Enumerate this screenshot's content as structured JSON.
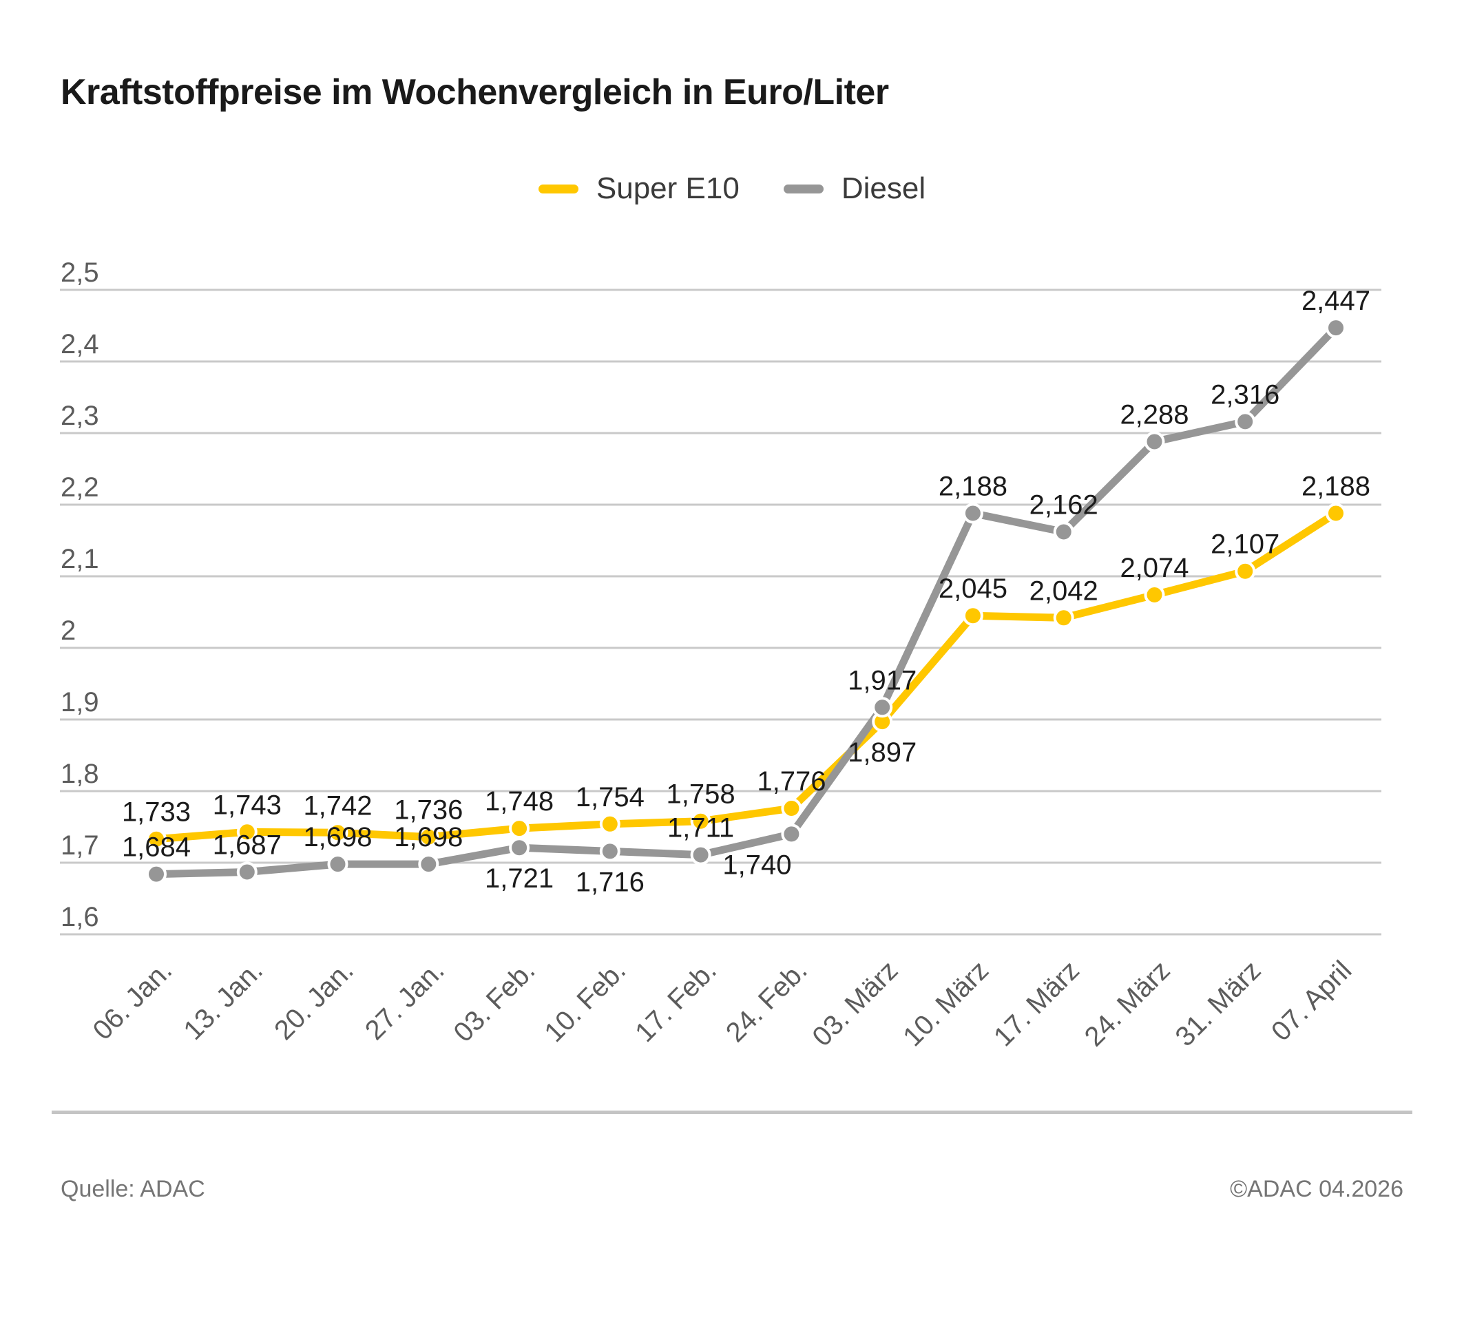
{
  "title": "Kraftstoffpreise im Wochenvergleich in Euro/Liter",
  "legend": {
    "items": [
      {
        "label": "Super E10",
        "color": "#FFC700"
      },
      {
        "label": "Diesel",
        "color": "#969696"
      }
    ]
  },
  "footer": {
    "source": "Quelle: ADAC",
    "copyright": "©ADAC 04.2026"
  },
  "colors": {
    "grid": "#C9C9C9",
    "axis_text": "#5C5C5C",
    "data_label": "#1A1A1A",
    "super_e10": "#FFC700",
    "diesel": "#969696"
  },
  "chart_data": {
    "type": "line",
    "title": "Kraftstoffpreise im Wochenvergleich in Euro/Liter",
    "unit": "Euro/Liter",
    "categories": [
      "06. Jan.",
      "13. Jan.",
      "20. Jan.",
      "27. Jan.",
      "03. Feb.",
      "10. Feb.",
      "17. Feb.",
      "24. Feb.",
      "03. März",
      "10. März",
      "17. März",
      "24. März",
      "31. März",
      "07. April"
    ],
    "series": [
      {
        "name": "Super E10",
        "color": "#FFC700",
        "values": [
          1.733,
          1.743,
          1.742,
          1.736,
          1.748,
          1.754,
          1.758,
          1.776,
          1.897,
          2.045,
          2.042,
          2.074,
          2.107,
          2.188
        ],
        "labels": [
          "1,733",
          "1,743",
          "1,742",
          "1,736",
          "1,748",
          "1,754",
          "1,758",
          "1,776",
          "1,897",
          "2,045",
          "2,042",
          "2,074",
          "2,107",
          "2,188"
        ]
      },
      {
        "name": "Diesel",
        "color": "#969696",
        "values": [
          1.684,
          1.687,
          1.698,
          1.698,
          1.721,
          1.716,
          1.711,
          1.74,
          1.917,
          2.188,
          2.162,
          2.288,
          2.316,
          2.447
        ],
        "labels": [
          "1,684",
          "1,687",
          "1,698",
          "1,698",
          "1,721",
          "1,716",
          "1,711",
          "1,740",
          "1,917",
          "2,188",
          "2,162",
          "2,288",
          "2,316",
          "2,447"
        ]
      }
    ],
    "ylim": [
      1.6,
      2.5
    ],
    "ytick_step": 0.1,
    "ytick_labels": [
      "1,6",
      "1,7",
      "1,8",
      "1,9",
      "2",
      "2,1",
      "2,2",
      "2,3",
      "2,4",
      "2,5"
    ],
    "grid": true,
    "legend_position": "top-center"
  }
}
